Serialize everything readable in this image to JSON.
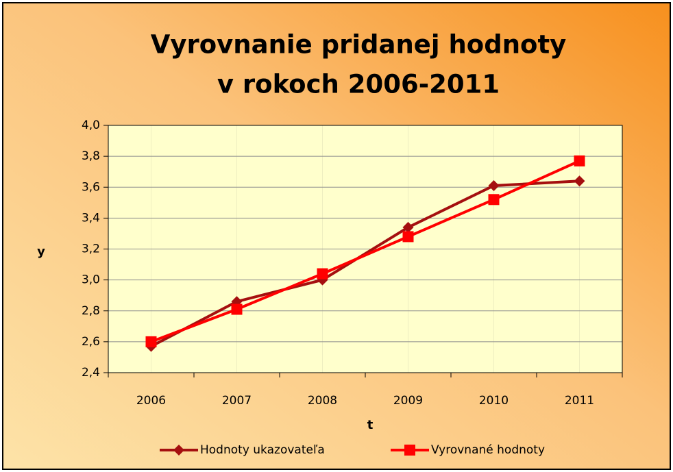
{
  "chart_data": {
    "type": "line",
    "title": [
      "Vyrovnanie pridanej hodnoty",
      "v rokoch 2006-2011"
    ],
    "xlabel": "t",
    "ylabel": "y",
    "categories": [
      "2006",
      "2007",
      "2008",
      "2009",
      "2010",
      "2011"
    ],
    "series": [
      {
        "name": "Hodnoty ukazovateľa",
        "color": "#a50f0f",
        "marker": "diamond",
        "values": [
          2.57,
          2.86,
          3.0,
          3.34,
          3.61,
          3.64
        ]
      },
      {
        "name": "Vyrovnané hodnoty",
        "color": "#ff0000",
        "marker": "square",
        "values": [
          2.6,
          2.81,
          3.04,
          3.28,
          3.52,
          3.77
        ]
      }
    ],
    "ylim": [
      2.4,
      4.0
    ],
    "yticks": [
      {
        "value": 2.4,
        "label": "2,4"
      },
      {
        "value": 2.6,
        "label": "2,6"
      },
      {
        "value": 2.8,
        "label": "2,8"
      },
      {
        "value": 3.0,
        "label": "3,0"
      },
      {
        "value": 3.2,
        "label": "3,2"
      },
      {
        "value": 3.4,
        "label": "3,4"
      },
      {
        "value": 3.6,
        "label": "3,6"
      },
      {
        "value": 3.8,
        "label": "3,8"
      },
      {
        "value": 4.0,
        "label": "4,0"
      }
    ],
    "grid": true,
    "legend": "bottom"
  }
}
